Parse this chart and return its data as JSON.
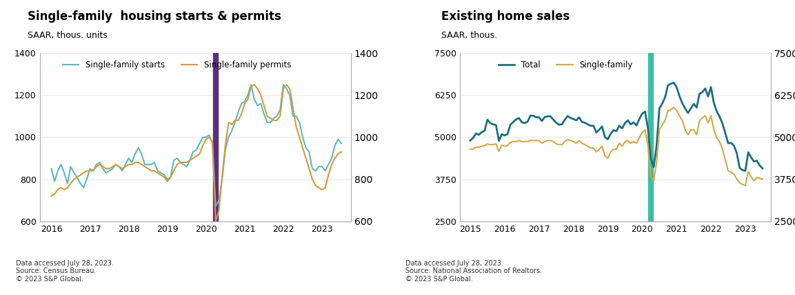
{
  "left_title": "Single-family  housing starts & permits",
  "left_subtitle": "SAAR, thous. units",
  "left_legend": [
    "Single-family starts",
    "Single-family permits"
  ],
  "left_colors": [
    "#5bb8c1",
    "#d49a3a"
  ],
  "left_vline_color": "#5b2d82",
  "left_vline_x": 2020.25,
  "left_ylim": [
    600,
    1400
  ],
  "left_yticks": [
    600,
    800,
    1000,
    1200,
    1400
  ],
  "left_xlim": [
    2015.7,
    2023.75
  ],
  "left_xticks": [
    2016,
    2017,
    2018,
    2019,
    2020,
    2021,
    2022,
    2023
  ],
  "left_footnote": "Data accessed July 28, 2023.\nSource: Census Bureau.\n© 2023 S&P Global.",
  "right_title": "Existing home sales",
  "right_subtitle": "SAAR, thous.",
  "right_legend": [
    "Total",
    "Single-family"
  ],
  "right_colors": [
    "#1a6e7e",
    "#d4a843"
  ],
  "right_vline_color": "#3dbda7",
  "right_vline_x": 2020.25,
  "right_ylim": [
    2500,
    7500
  ],
  "right_yticks": [
    2500,
    3750,
    5000,
    6250,
    7500
  ],
  "right_xlim": [
    2014.7,
    2023.75
  ],
  "right_xticks": [
    2015,
    2016,
    2017,
    2018,
    2019,
    2020,
    2021,
    2022,
    2023
  ],
  "right_footnote": "Data accessed July 28, 2023.\nSource: National Association of Realtors.\n© 2023 S&P Global.",
  "bg_color": "#ffffff",
  "line_width": 1.5
}
